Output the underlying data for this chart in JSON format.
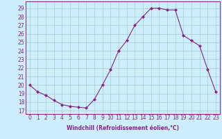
{
  "x": [
    0,
    1,
    2,
    3,
    4,
    5,
    6,
    7,
    8,
    9,
    10,
    11,
    12,
    13,
    14,
    15,
    16,
    17,
    18,
    19,
    20,
    21,
    22,
    23
  ],
  "y": [
    20,
    19.2,
    18.8,
    18.2,
    17.7,
    17.5,
    17.4,
    17.3,
    18.3,
    20.0,
    21.8,
    24.0,
    25.2,
    27.0,
    28.0,
    29.0,
    29.0,
    28.8,
    28.8,
    25.8,
    25.2,
    24.6,
    21.8,
    19.2
  ],
  "line_color": "#882288",
  "marker": "D",
  "marker_size": 2.0,
  "bg_color": "#cceeff",
  "grid_color": "#aacccc",
  "ylabel_ticks": [
    17,
    18,
    19,
    20,
    21,
    22,
    23,
    24,
    25,
    26,
    27,
    28,
    29
  ],
  "ylim": [
    16.6,
    29.8
  ],
  "xlim": [
    -0.5,
    23.5
  ],
  "xlabel": "Windchill (Refroidissement éolien,°C)",
  "xlabel_fontsize": 5.5,
  "tick_fontsize": 5.5,
  "linewidth": 0.8
}
